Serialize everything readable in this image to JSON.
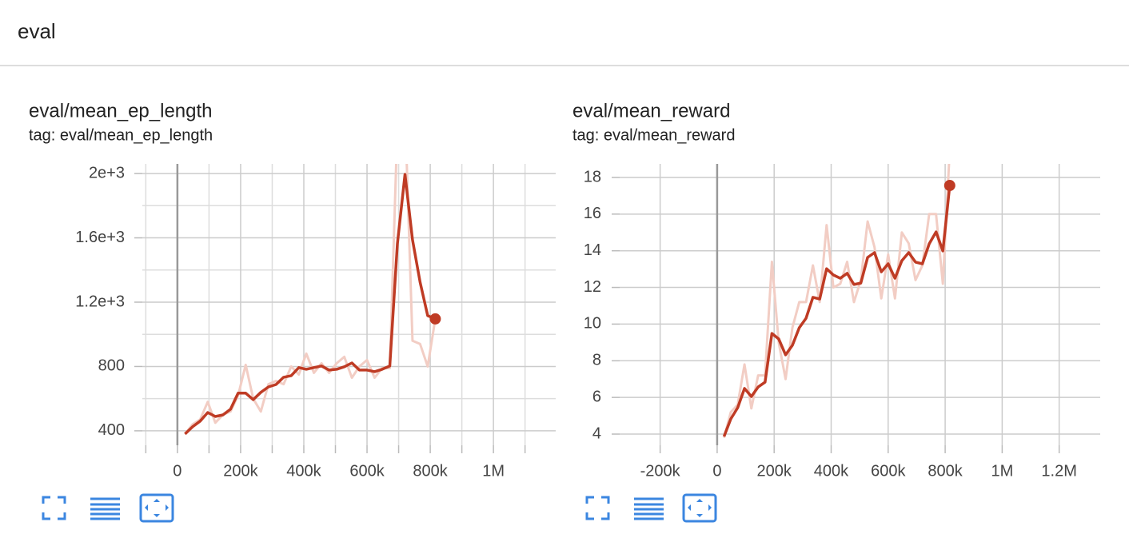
{
  "header": {
    "title": "eval"
  },
  "chart_data": [
    {
      "type": "line",
      "title": "eval/mean_ep_length",
      "subtitle": "tag: eval/mean_ep_length",
      "x": [
        24000,
        48000,
        72000,
        96000,
        120000,
        144000,
        168000,
        192000,
        216000,
        240000,
        264000,
        288000,
        312000,
        336000,
        360000,
        384000,
        408000,
        432000,
        456000,
        480000,
        504000,
        528000,
        552000,
        576000,
        600000,
        624000,
        648000,
        672000,
        696000,
        720000,
        744000,
        768000,
        792000,
        816000
      ],
      "series": [
        {
          "color": "#f2cdc4",
          "values": [
            380,
            440,
            470,
            580,
            450,
            500,
            520,
            620,
            810,
            600,
            520,
            690,
            710,
            690,
            800,
            750,
            880,
            760,
            820,
            760,
            820,
            860,
            730,
            800,
            840,
            730,
            790,
            790,
            2300,
            2400,
            960,
            940,
            800,
            1096
          ]
        },
        {
          "color": "#bf3b24",
          "endpoint_marker": true,
          "values": [
            380,
            425,
            460,
            514,
            489,
            499,
            534,
            634,
            634,
            594,
            639,
            673,
            688,
            733,
            743,
            793,
            783,
            793,
            803,
            778,
            783,
            798,
            822,
            778,
            778,
            768,
            783,
            803,
            1563,
            1995,
            1588,
            1324,
            1116,
            1096
          ]
        }
      ],
      "xlim": [
        -111000,
        1197000
      ],
      "xticks": [
        0,
        {
          "value": 200000,
          "label": "200k"
        },
        {
          "value": 400000,
          "label": "400k"
        },
        {
          "value": 600000,
          "label": "600k"
        },
        {
          "value": 800000,
          "label": "800k"
        },
        {
          "value": 1000000,
          "label": "1M"
        }
      ],
      "xminor": [
        -100000,
        100000,
        300000,
        500000,
        700000,
        900000,
        1100000
      ],
      "ylim": [
        310,
        2060
      ],
      "yticks": [
        400,
        800,
        {
          "value": 1200,
          "label": "1.2e+3"
        },
        {
          "value": 1600,
          "label": "1.6e+3"
        },
        {
          "value": 2000,
          "label": "2e+3"
        }
      ],
      "yminor": [
        600,
        1000,
        1400,
        1800
      ],
      "grid": true
    },
    {
      "type": "line",
      "title": "eval/mean_reward",
      "subtitle": "tag: eval/mean_reward",
      "x": [
        24000,
        48000,
        72000,
        96000,
        120000,
        144000,
        168000,
        192000,
        216000,
        240000,
        264000,
        288000,
        312000,
        336000,
        360000,
        384000,
        408000,
        432000,
        456000,
        480000,
        504000,
        528000,
        552000,
        576000,
        600000,
        624000,
        648000,
        672000,
        696000,
        720000,
        744000,
        768000,
        792000,
        816000
      ],
      "series": [
        {
          "color": "#f2cdc4",
          "values": [
            3.8,
            5.2,
            5.6,
            7.8,
            5.4,
            7.2,
            7.2,
            13.4,
            9.0,
            7.0,
            9.8,
            11.2,
            11.2,
            13.2,
            11.2,
            15.4,
            12.0,
            12.2,
            13.4,
            11.2,
            12.4,
            15.6,
            14.2,
            11.4,
            13.8,
            11.4,
            15.0,
            14.4,
            12.4,
            13.2,
            16.0,
            16.0,
            12.2,
            19.5
          ]
        },
        {
          "color": "#bf3b24",
          "endpoint_marker": true,
          "values": [
            3.87,
            4.83,
            5.44,
            6.49,
            6.05,
            6.57,
            6.83,
            9.49,
            9.19,
            8.32,
            8.84,
            9.8,
            10.32,
            11.46,
            11.37,
            13.02,
            12.68,
            12.5,
            12.77,
            12.16,
            12.24,
            13.64,
            13.9,
            12.85,
            13.29,
            12.5,
            13.46,
            13.9,
            13.38,
            13.29,
            14.38,
            15.03,
            13.99,
            17.56
          ]
        }
      ],
      "xlim": [
        -342000,
        1344000
      ],
      "xticks": [
        {
          "value": -200000,
          "label": "-200k"
        },
        0,
        {
          "value": 200000,
          "label": "200k"
        },
        {
          "value": 400000,
          "label": "400k"
        },
        {
          "value": 600000,
          "label": "600k"
        },
        {
          "value": 800000,
          "label": "800k"
        },
        {
          "value": 1000000,
          "label": "1M"
        },
        {
          "value": 1200000,
          "label": "1.2M"
        }
      ],
      "ylim": [
        3.39,
        18.74
      ],
      "yticks": [
        4,
        6,
        8,
        10,
        12,
        14,
        16,
        18
      ],
      "grid": true
    }
  ]
}
